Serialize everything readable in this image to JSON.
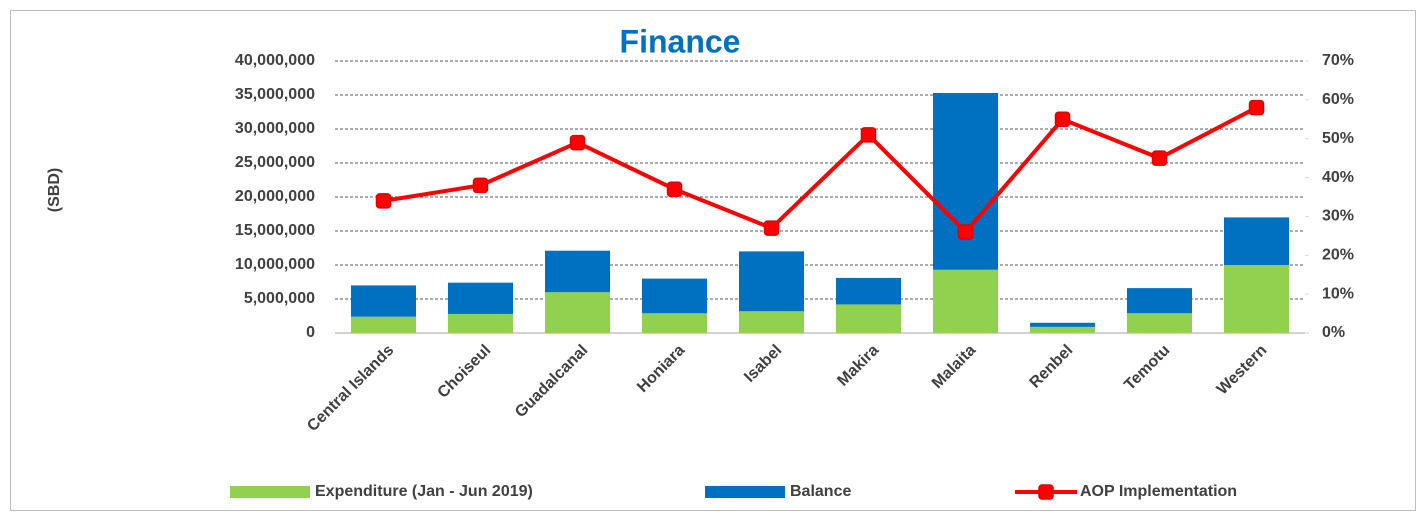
{
  "chart_data": {
    "type": "bar",
    "title": "Finance",
    "ylabel": "(SBD)",
    "categories": [
      "Central Islands",
      "Choiseul",
      "Guadalcanal",
      "Honiara",
      "Isabel",
      "Makira",
      "Malaita",
      "Renbel",
      "Temotu",
      "Western"
    ],
    "series": [
      {
        "name": "Expenditure (Jan - Jun 2019)",
        "color": "#92d050",
        "values": [
          2400000,
          2800000,
          6000000,
          2900000,
          3200000,
          4200000,
          9300000,
          900000,
          2900000,
          10000000
        ]
      },
      {
        "name": "Balance",
        "color": "#0070c0",
        "values": [
          4600000,
          4600000,
          6100000,
          5100000,
          8800000,
          3900000,
          26000000,
          600000,
          3700000,
          7000000
        ]
      },
      {
        "name": "AOP Implementation",
        "color": "#ff0000",
        "axis": "y2",
        "type": "line",
        "values": [
          34,
          38,
          49,
          37,
          27,
          51,
          26,
          55,
          45,
          58
        ]
      }
    ],
    "stacked": true,
    "ylim": [
      0,
      40000000
    ],
    "yticks": [
      0,
      {
        "value": 5000000,
        "label": "5,000,000"
      },
      {
        "value": 10000000,
        "label": "10,000,000"
      },
      {
        "value": 15000000,
        "label": "15,000,000"
      },
      {
        "value": 20000000,
        "label": "20,000,000"
      },
      {
        "value": 25000000,
        "label": "25,000,000"
      },
      {
        "value": 30000000,
        "label": "30,000,000"
      },
      {
        "value": 35000000,
        "label": "35,000,000"
      },
      {
        "value": 40000000,
        "label": "40,000,000"
      }
    ],
    "y2lim": [
      0,
      70
    ],
    "y2ticks": [
      {
        "value": 0,
        "label": "0%"
      },
      {
        "value": 10,
        "label": "10%"
      },
      {
        "value": 20,
        "label": "20%"
      },
      {
        "value": 30,
        "label": "30%"
      },
      {
        "value": 40,
        "label": "40%"
      },
      {
        "value": 50,
        "label": "50%"
      },
      {
        "value": 60,
        "label": "60%"
      },
      {
        "value": 70,
        "label": "70%"
      }
    ],
    "grid": true,
    "legend": "bottom"
  }
}
